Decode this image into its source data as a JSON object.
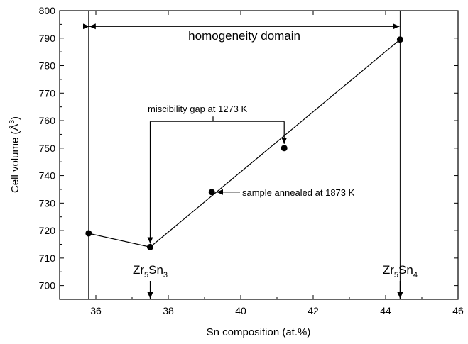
{
  "chart_data": {
    "type": "scatter",
    "xlabel": "Sn composition (at.%)",
    "ylabel_main": "Cell volume (Å",
    "ylabel_sup": "3",
    "ylabel_end": ")",
    "xlim": [
      35,
      46
    ],
    "ylim": [
      695,
      800
    ],
    "xticks": [
      36,
      38,
      40,
      42,
      44,
      46
    ],
    "yticks": [
      700,
      710,
      720,
      730,
      740,
      750,
      760,
      770,
      780,
      790,
      800
    ],
    "grid": false,
    "series": [
      {
        "points": [
          {
            "x": 35.8,
            "y": 719
          },
          {
            "x": 37.5,
            "y": 714
          },
          {
            "x": 39.2,
            "y": 734
          },
          {
            "x": 41.2,
            "y": 750
          },
          {
            "x": 44.4,
            "y": 789.5
          }
        ],
        "line": [
          {
            "x": 35.8,
            "y": 719
          },
          {
            "x": 37.5,
            "y": 714
          },
          {
            "x": 44.4,
            "y": 789.5
          }
        ]
      }
    ],
    "vertical_lines_x": [
      35.8,
      44.4
    ],
    "annotations": {
      "homogeneity": {
        "text": "homogeneity domain",
        "x_from": 35.8,
        "x_to": 44.4,
        "y": 794
      },
      "miscibility": {
        "text": "miscibility gap at 1273 K",
        "x_left": 37.5,
        "x_right": 41.2,
        "y": 759.7
      },
      "annealed": {
        "text": "sample annealed at 1873 K",
        "x": 39.2,
        "y": 734
      },
      "phase1": {
        "main": "Zr",
        "sub1": "5",
        "mid": "Sn",
        "sub2": "3",
        "x": 37.5
      },
      "phase2": {
        "main": "Zr",
        "sub1": "5",
        "mid": "Sn",
        "sub2": "4",
        "x": 44.4
      }
    }
  }
}
